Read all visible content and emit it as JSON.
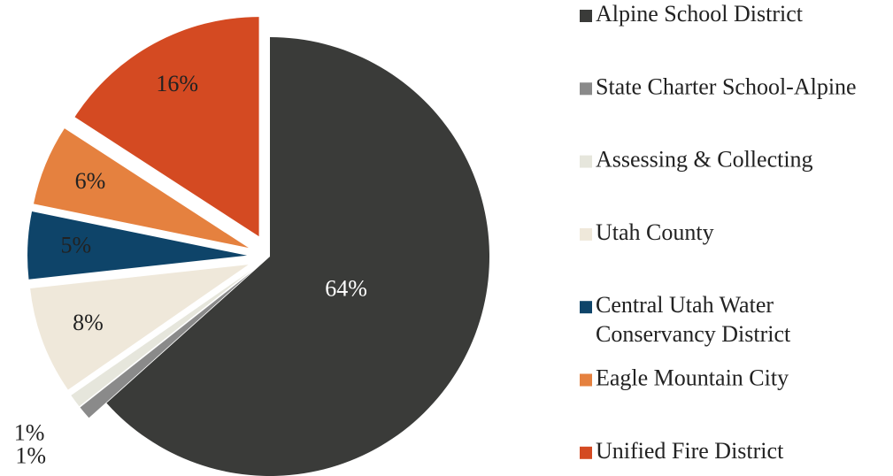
{
  "chart_data": {
    "type": "pie",
    "categories": [
      "Alpine School District",
      "State Charter School-Alpine",
      "Assessing & Collecting",
      "Utah County",
      "Central Utah Water Conservancy District",
      "Eagle Mountain City",
      "Unified Fire District"
    ],
    "values": [
      64,
      1,
      1,
      8,
      5,
      6,
      16
    ],
    "value_labels": [
      "64%",
      "1%",
      "1%",
      "8%",
      "5%",
      "6%",
      "16%"
    ],
    "colors": [
      "#3a3b39",
      "#8a8a8a",
      "#e6e6dc",
      "#efe8da",
      "#0e4469",
      "#e5813f",
      "#d44a22"
    ],
    "legend": "right"
  }
}
